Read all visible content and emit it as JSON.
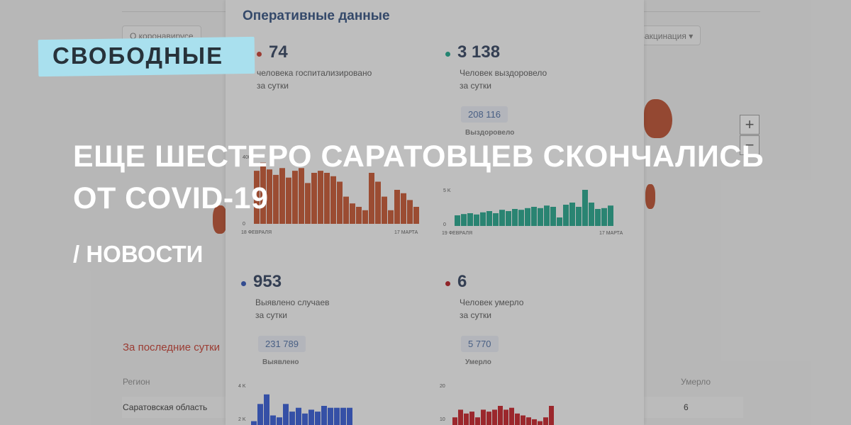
{
  "brand": {
    "name": "СВОБОДНЫЕ"
  },
  "article": {
    "headline_line1": "ЕЩЕ ШЕСТЕРО САРАТОВЦЕВ СКОНЧАЛИСЬ",
    "headline_line2": "ОТ COVID-19",
    "rubric": "/ НОВОСТИ"
  },
  "background": {
    "nav_pill_1": "О коронавирусе",
    "nav_pill_2": "Вакцинация ▾",
    "card_title": "Оперативные данные",
    "stats": [
      {
        "value": "74",
        "label_line1": "человека госпитализировано",
        "label_line2": "за сутки",
        "color": "#c0392b"
      },
      {
        "value": "3 138",
        "label_line1": "Человек выздоровело",
        "label_line2": "за сутки",
        "color": "#16a085",
        "total": "208 116",
        "total_label": "Выздоровело"
      },
      {
        "value": "953",
        "label_line1": "Выявлено случаев",
        "label_line2": "за сутки",
        "color": "#2c4fb0",
        "total": "231 789",
        "total_label": "Выявлено"
      },
      {
        "value": "6",
        "label_line1": "Человек умерло",
        "label_line2": "за сутки",
        "color": "#b0181e",
        "total": "5 770",
        "total_label": "Умерло"
      }
    ],
    "chart_red": {
      "color": "#c0502a",
      "start": "18 ФЕВРАЛЯ",
      "end": "17 МАРТА",
      "zero": "0",
      "top": "400",
      "values": [
        0.78,
        0.9,
        0.8,
        0.72,
        0.82,
        0.68,
        0.78,
        0.82,
        0.6,
        0.75,
        0.78,
        0.75,
        0.7,
        0.62,
        0.4,
        0.3,
        0.25,
        0.2,
        0.75,
        0.62,
        0.4,
        0.2,
        0.5,
        0.45,
        0.35,
        0.25
      ]
    },
    "chart_green": {
      "color": "#1f9f86",
      "start": "19 ФЕВРАЛЯ",
      "end": "17 МАРТА",
      "zero": "0",
      "tick": "5 K",
      "values": [
        0.25,
        0.28,
        0.3,
        0.27,
        0.32,
        0.35,
        0.3,
        0.38,
        0.35,
        0.4,
        0.38,
        0.42,
        0.45,
        0.42,
        0.48,
        0.45,
        0.2,
        0.5,
        0.55,
        0.45,
        0.85,
        0.55,
        0.4,
        0.42,
        0.48
      ]
    },
    "chart_blue": {
      "color": "#2f55d0",
      "tick_top": "4 K",
      "tick_mid": "2 K",
      "values": [
        0.1,
        0.55,
        0.8,
        0.25,
        0.2,
        0.55,
        0.35,
        0.45,
        0.3,
        0.4,
        0.35,
        0.5,
        0.45,
        0.45,
        0.45,
        0.45
      ]
    },
    "chart_dark_red": {
      "color": "#c01a22",
      "tick_top": "20",
      "tick_mid": "10",
      "values": [
        0.2,
        0.4,
        0.3,
        0.35,
        0.2,
        0.4,
        0.35,
        0.4,
        0.5,
        0.4,
        0.45,
        0.3,
        0.25,
        0.2,
        0.15,
        0.1,
        0.2,
        0.5
      ]
    },
    "recent_label": "За последние сутки",
    "table_region": "Регион",
    "table_died": "Умерло",
    "row_region": "Саратовская область",
    "row_died": "6",
    "zoom_in": "+",
    "zoom_out": "−"
  }
}
